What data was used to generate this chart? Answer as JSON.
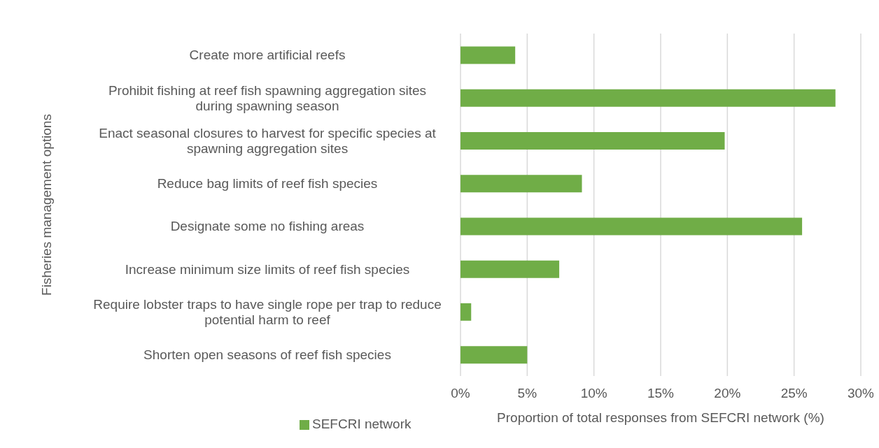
{
  "chart_data": {
    "type": "bar",
    "orientation": "horizontal",
    "xlabel": "Proportion of total responses from SEFCRI network (%)",
    "ylabel": "Fisheries management options",
    "categories": [
      "Create more artificial reefs",
      "Prohibit fishing at reef fish spawning aggregation sites during spawning season",
      "Enact seasonal closures to harvest for specific species at spawning aggregation sites",
      "Reduce bag limits of reef fish species",
      "Designate some no fishing areas",
      "Increase minimum size limits of reef fish species",
      "Require lobster traps to have single rope per trap to reduce potential harm to reef",
      "Shorten open seasons of reef fish species"
    ],
    "series": [
      {
        "name": "SEFCRI network",
        "color": "#70ad47",
        "values": [
          4.1,
          28.1,
          19.8,
          9.1,
          25.6,
          7.4,
          0.8,
          5.0
        ]
      }
    ],
    "xlim": [
      0,
      30
    ],
    "xticks": [
      {
        "value": 0,
        "label": "0%"
      },
      {
        "value": 5,
        "label": "5%"
      },
      {
        "value": 10,
        "label": "10%"
      },
      {
        "value": 15,
        "label": "15%"
      },
      {
        "value": 20,
        "label": "20%"
      },
      {
        "value": 25,
        "label": "25%"
      },
      {
        "value": 30,
        "label": "30%"
      }
    ],
    "grid": "x",
    "legend": "bottom left"
  }
}
